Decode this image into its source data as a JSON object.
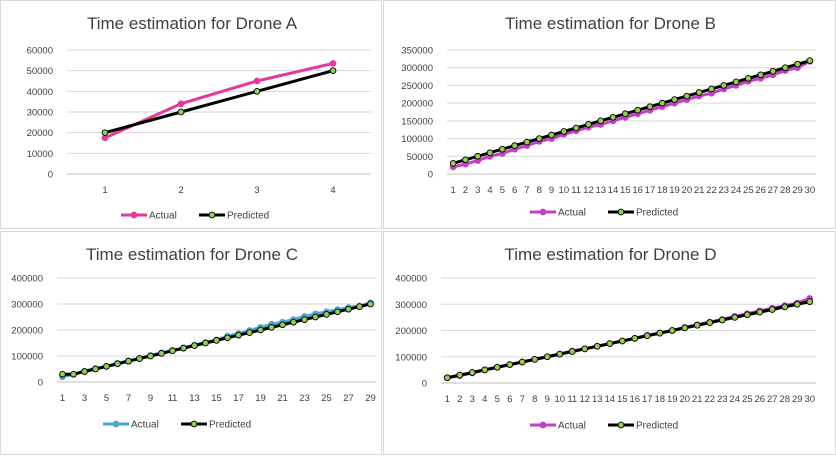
{
  "colors": {
    "actual_A": "#e6379b",
    "actual_B": "#c23fc8",
    "actual_C": "#4aa8d8",
    "actual_D": "#c23fc8",
    "predicted_line": "#000000",
    "predicted_marker": "#92d050",
    "gridline": "#d9d9d9",
    "axis": "#bfbfbf"
  },
  "chart_data": [
    {
      "type": "line",
      "title": "Time estimation for Drone A",
      "x": [
        1,
        2,
        3,
        4
      ],
      "x_tick_labels": [
        "1",
        "2",
        "3",
        "4"
      ],
      "ylim": [
        0,
        60000
      ],
      "y_ticks": [
        0,
        10000,
        20000,
        30000,
        40000,
        50000,
        60000
      ],
      "y_tick_labels": [
        "0",
        "10000",
        "20000",
        "30000",
        "40000",
        "50000",
        "60000"
      ],
      "grid": true,
      "legend_position": "bottom",
      "series": [
        {
          "name": "Actual",
          "values": [
            17500,
            34000,
            45000,
            53500
          ]
        },
        {
          "name": "Predicted",
          "values": [
            20000,
            30000,
            40000,
            50000
          ]
        }
      ]
    },
    {
      "type": "line",
      "title": "Time estimation for Drone B",
      "x": [
        1,
        2,
        3,
        4,
        5,
        6,
        7,
        8,
        9,
        10,
        11,
        12,
        13,
        14,
        15,
        16,
        17,
        18,
        19,
        20,
        21,
        22,
        23,
        24,
        25,
        26,
        27,
        28,
        29,
        30
      ],
      "x_tick_labels": [
        "1",
        "2",
        "3",
        "4",
        "5",
        "6",
        "7",
        "8",
        "9",
        "10",
        "11",
        "12",
        "13",
        "14",
        "15",
        "16",
        "17",
        "18",
        "19",
        "20",
        "21",
        "22",
        "23",
        "24",
        "25",
        "26",
        "27",
        "28",
        "29",
        "30"
      ],
      "ylim": [
        0,
        350000
      ],
      "y_ticks": [
        0,
        50000,
        100000,
        150000,
        200000,
        250000,
        300000,
        350000
      ],
      "y_tick_labels": [
        "0",
        "50000",
        "100000",
        "150000",
        "200000",
        "250000",
        "300000",
        "350000"
      ],
      "grid": true,
      "legend_position": "bottom",
      "series": [
        {
          "name": "Actual",
          "values": [
            20000,
            28000,
            38000,
            50000,
            58000,
            70000,
            80000,
            92000,
            100000,
            112000,
            122000,
            132000,
            140000,
            150000,
            160000,
            170000,
            180000,
            190000,
            200000,
            210000,
            220000,
            228000,
            240000,
            250000,
            262000,
            270000,
            280000,
            292000,
            300000,
            318000
          ]
        },
        {
          "name": "Predicted",
          "values": [
            30000,
            40000,
            50000,
            60000,
            70000,
            80000,
            90000,
            100000,
            110000,
            120000,
            130000,
            140000,
            150000,
            160000,
            170000,
            180000,
            190000,
            200000,
            210000,
            220000,
            230000,
            240000,
            250000,
            260000,
            270000,
            280000,
            290000,
            300000,
            310000,
            320000
          ]
        }
      ]
    },
    {
      "type": "line",
      "title": "Time estimation for Drone C",
      "x": [
        1,
        2,
        3,
        4,
        5,
        6,
        7,
        8,
        9,
        10,
        11,
        12,
        13,
        14,
        15,
        16,
        17,
        18,
        19,
        20,
        21,
        22,
        23,
        24,
        25,
        26,
        27,
        28,
        29
      ],
      "x_tick_labels": [
        "1",
        "3",
        "5",
        "7",
        "9",
        "11",
        "13",
        "15",
        "17",
        "19",
        "21",
        "23",
        "25",
        "27",
        "29"
      ],
      "ylim": [
        0,
        400000
      ],
      "y_ticks": [
        0,
        100000,
        200000,
        300000,
        400000
      ],
      "y_tick_labels": [
        "0",
        "100000",
        "200000",
        "300000",
        "400000"
      ],
      "grid": true,
      "legend_position": "bottom",
      "series": [
        {
          "name": "Actual",
          "values": [
            20000,
            30000,
            42000,
            52000,
            60000,
            72000,
            82000,
            92000,
            102000,
            112000,
            122000,
            132000,
            142000,
            152000,
            162000,
            176000,
            186000,
            198000,
            210000,
            222000,
            230000,
            240000,
            252000,
            262000,
            270000,
            278000,
            286000,
            292000,
            305000
          ]
        },
        {
          "name": "Predicted",
          "values": [
            30000,
            30000,
            40000,
            50000,
            60000,
            70000,
            80000,
            90000,
            100000,
            110000,
            120000,
            130000,
            140000,
            150000,
            160000,
            170000,
            180000,
            190000,
            200000,
            210000,
            220000,
            230000,
            240000,
            250000,
            260000,
            270000,
            280000,
            290000,
            300000
          ]
        }
      ]
    },
    {
      "type": "line",
      "title": "Time estimation for Drone D",
      "x": [
        1,
        2,
        3,
        4,
        5,
        6,
        7,
        8,
        9,
        10,
        11,
        12,
        13,
        14,
        15,
        16,
        17,
        18,
        19,
        20,
        21,
        22,
        23,
        24,
        25,
        26,
        27,
        28,
        29,
        30
      ],
      "x_tick_labels": [
        "1",
        "2",
        "3",
        "4",
        "5",
        "6",
        "7",
        "8",
        "9",
        "10",
        "11",
        "12",
        "13",
        "14",
        "15",
        "16",
        "17",
        "18",
        "19",
        "20",
        "21",
        "22",
        "23",
        "24",
        "25",
        "26",
        "27",
        "28",
        "29",
        "30"
      ],
      "ylim": [
        0,
        400000
      ],
      "y_ticks": [
        0,
        100000,
        200000,
        300000,
        400000
      ],
      "y_tick_labels": [
        "0",
        "100000",
        "200000",
        "300000",
        "400000"
      ],
      "grid": true,
      "legend_position": "bottom",
      "series": [
        {
          "name": "Actual",
          "values": [
            20000,
            28000,
            38000,
            50000,
            60000,
            70000,
            80000,
            90000,
            100000,
            110000,
            122000,
            130000,
            140000,
            150000,
            160000,
            170000,
            182000,
            190000,
            200000,
            212000,
            222000,
            232000,
            242000,
            254000,
            264000,
            275000,
            285000,
            295000,
            305000,
            322000
          ]
        },
        {
          "name": "Predicted",
          "values": [
            20000,
            30000,
            40000,
            50000,
            60000,
            70000,
            80000,
            90000,
            100000,
            110000,
            120000,
            130000,
            140000,
            150000,
            160000,
            170000,
            180000,
            190000,
            200000,
            210000,
            220000,
            230000,
            240000,
            250000,
            260000,
            270000,
            280000,
            290000,
            300000,
            310000
          ]
        }
      ]
    }
  ]
}
